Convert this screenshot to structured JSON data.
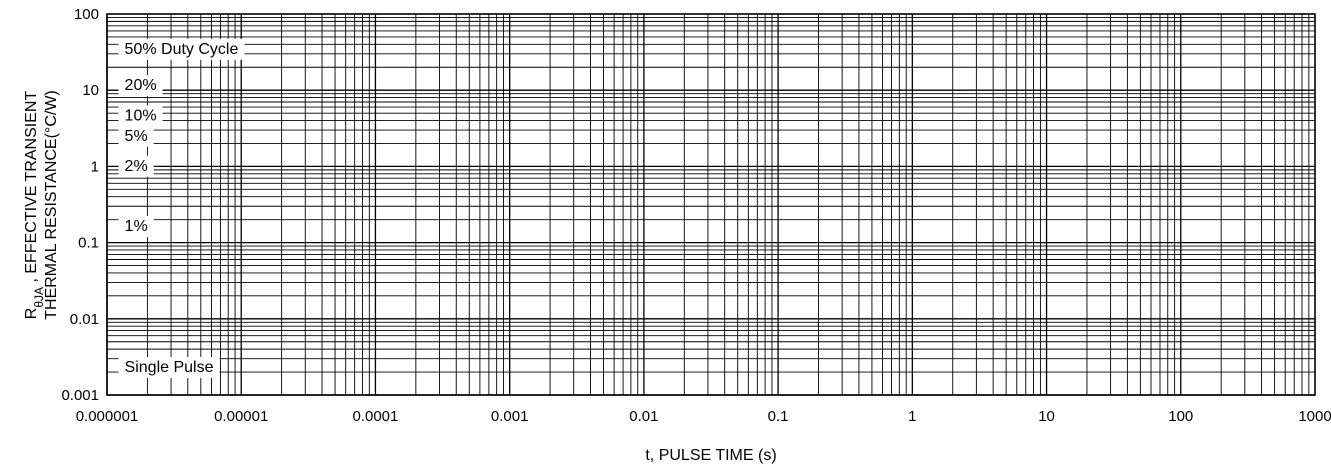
{
  "chart_data": {
    "type": "line",
    "xscale": "log",
    "yscale": "log",
    "xlim": [
      1e-06,
      1000
    ],
    "ylim": [
      0.001,
      100
    ],
    "grid": true,
    "xlabel": "t, PULSE TIME (s)",
    "ylabel_line1_prefix": "R",
    "ylabel_line1_subscript": "θJA",
    "ylabel_line1_suffix": " , EFFECTIVE TRANSIENT",
    "ylabel_line2": "THERMAL RESISTANCE(°C/W)",
    "x_ticks": [
      {
        "value": 1e-06,
        "label": "0.000001"
      },
      {
        "value": 1e-05,
        "label": "0.00001"
      },
      {
        "value": 0.0001,
        "label": "0.0001"
      },
      {
        "value": 0.001,
        "label": "0.001"
      },
      {
        "value": 0.01,
        "label": "0.01"
      },
      {
        "value": 0.1,
        "label": "0.1"
      },
      {
        "value": 1,
        "label": "1"
      },
      {
        "value": 10,
        "label": "10"
      },
      {
        "value": 100,
        "label": "100"
      },
      {
        "value": 1000,
        "label": "1000"
      }
    ],
    "y_ticks": [
      {
        "value": 100,
        "label": "100"
      },
      {
        "value": 10,
        "label": "10"
      },
      {
        "value": 1,
        "label": "1"
      },
      {
        "value": 0.1,
        "label": "0.1"
      },
      {
        "value": 0.01,
        "label": "0.01"
      },
      {
        "value": 0.001,
        "label": "0.001"
      }
    ],
    "annotations": [
      {
        "text": "50% Duty Cycle",
        "x": 1.1e-06,
        "y": 36
      },
      {
        "text": "20%",
        "x": 1.1e-06,
        "y": 12
      },
      {
        "text": "10%",
        "x": 1.1e-06,
        "y": 4.8
      },
      {
        "text": "5%",
        "x": 1.1e-06,
        "y": 2.6
      },
      {
        "text": "2%",
        "x": 1.1e-06,
        "y": 1.05
      },
      {
        "text": "1%",
        "x": 1.1e-06,
        "y": 0.17
      },
      {
        "text": "Single Pulse",
        "x": 1.1e-06,
        "y": 0.0024
      }
    ]
  }
}
